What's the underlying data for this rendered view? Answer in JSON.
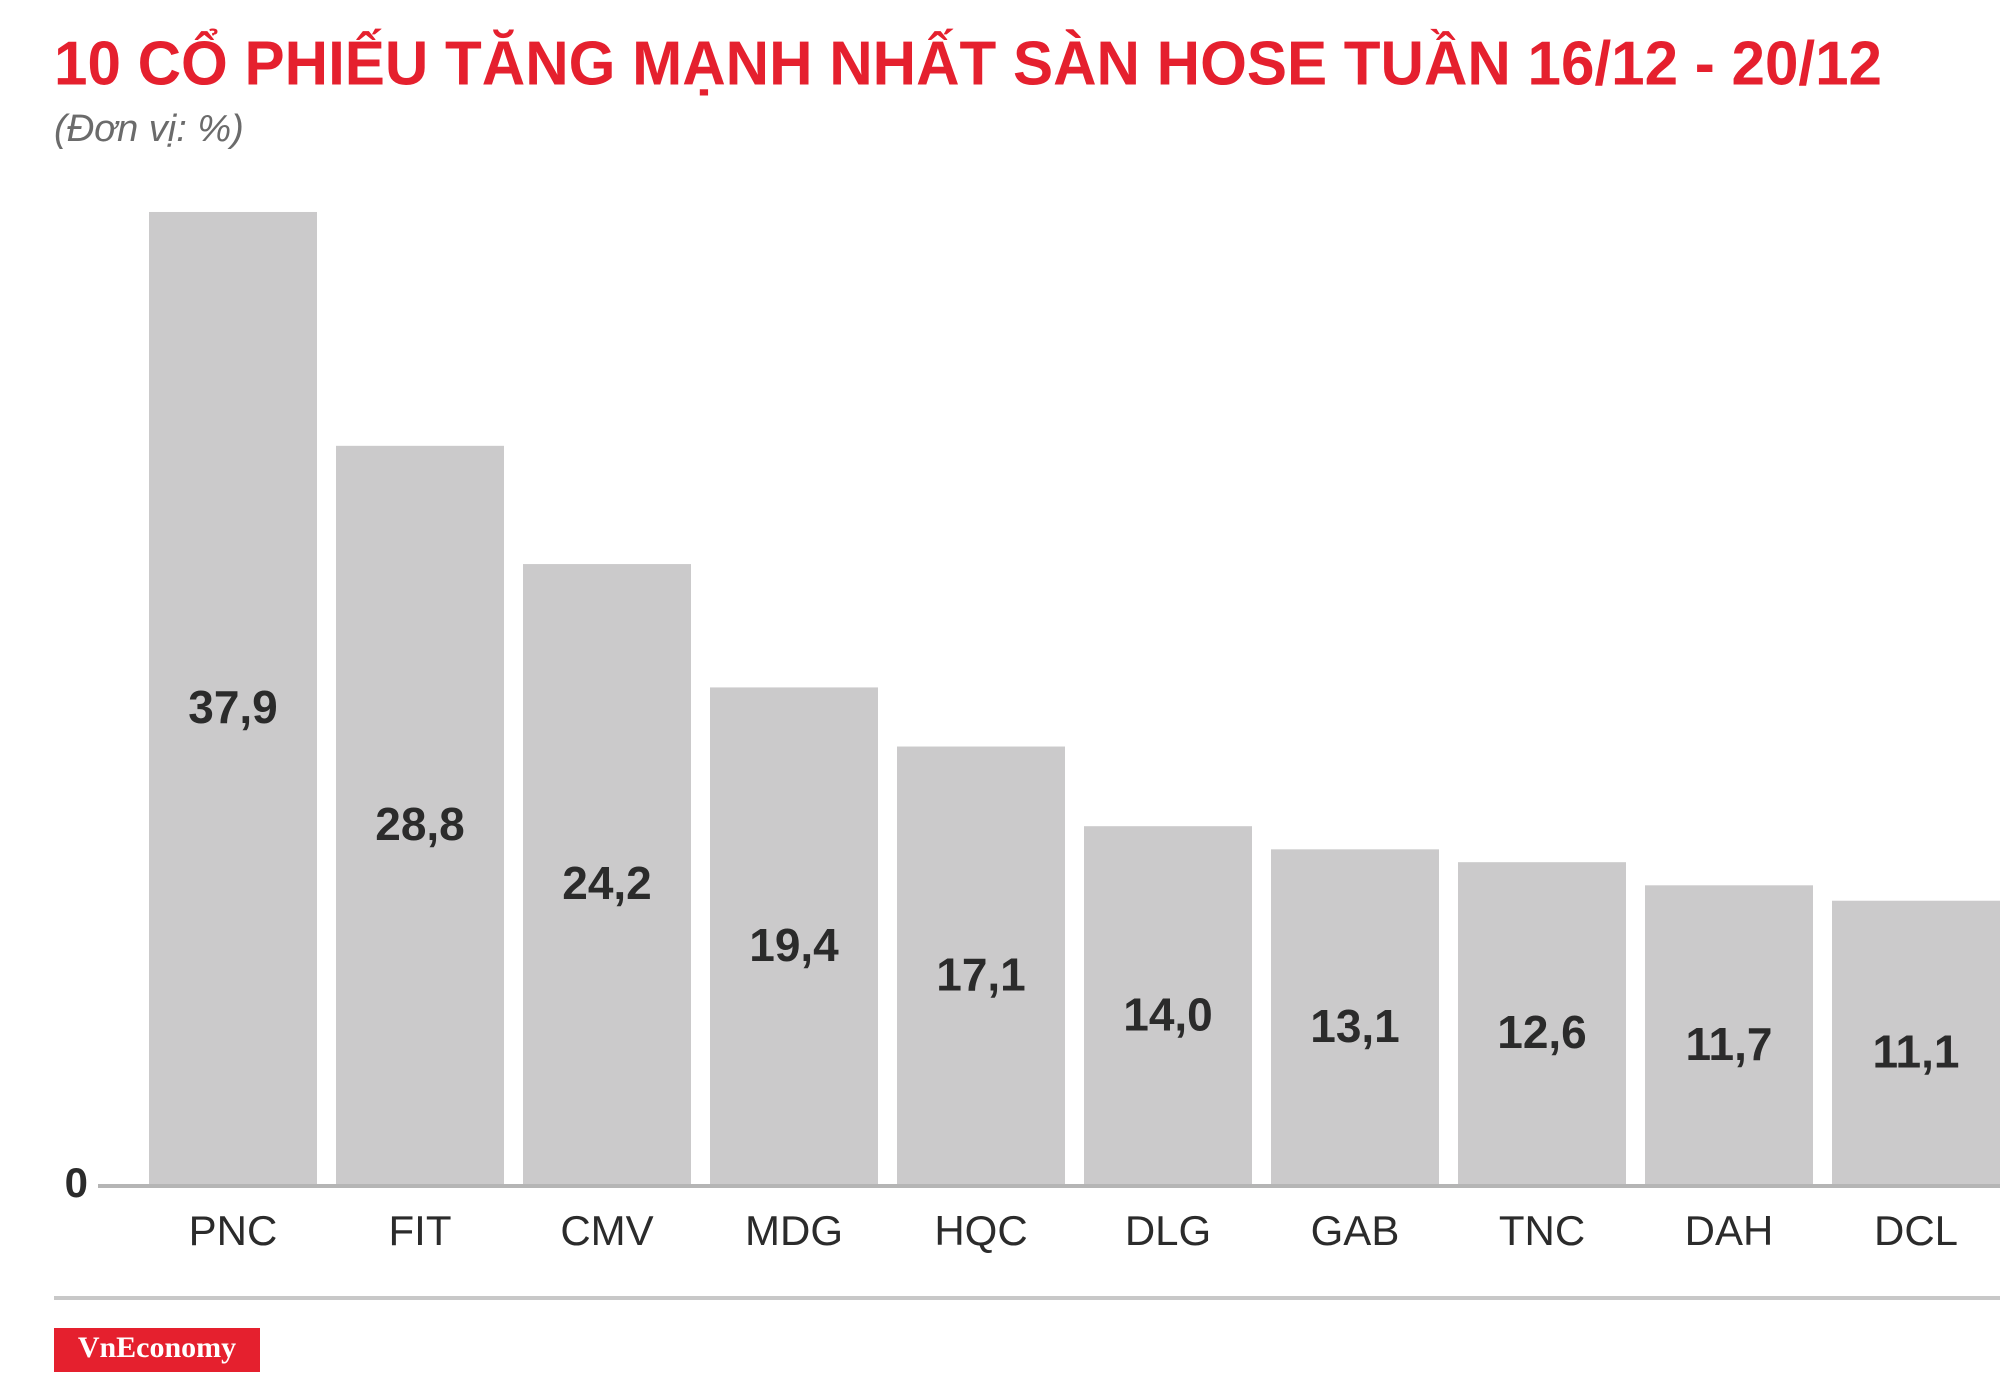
{
  "chart_data": {
    "type": "bar",
    "title": "10 CỔ PHIẾU TĂNG MẠNH NHẤT SÀN HOSE TUẦN 16/12 - 20/12",
    "subtitle": "(Đơn vị: %)",
    "categories": [
      "PNC",
      "FIT",
      "CMV",
      "MDG",
      "HQC",
      "DLG",
      "GAB",
      "TNC",
      "DAH",
      "DCL"
    ],
    "values": [
      37.9,
      28.8,
      24.2,
      19.4,
      17.1,
      14.0,
      13.1,
      12.6,
      11.7,
      11.1
    ],
    "value_labels": [
      "37,9",
      "28,8",
      "24,2",
      "19,4",
      "17,1",
      "14,0",
      "13,1",
      "12,6",
      "11,7",
      "11,1"
    ],
    "color": "#cbcacb",
    "ylim": [
      0,
      40
    ],
    "yticks": [
      0
    ],
    "source": "VnEconomy"
  }
}
